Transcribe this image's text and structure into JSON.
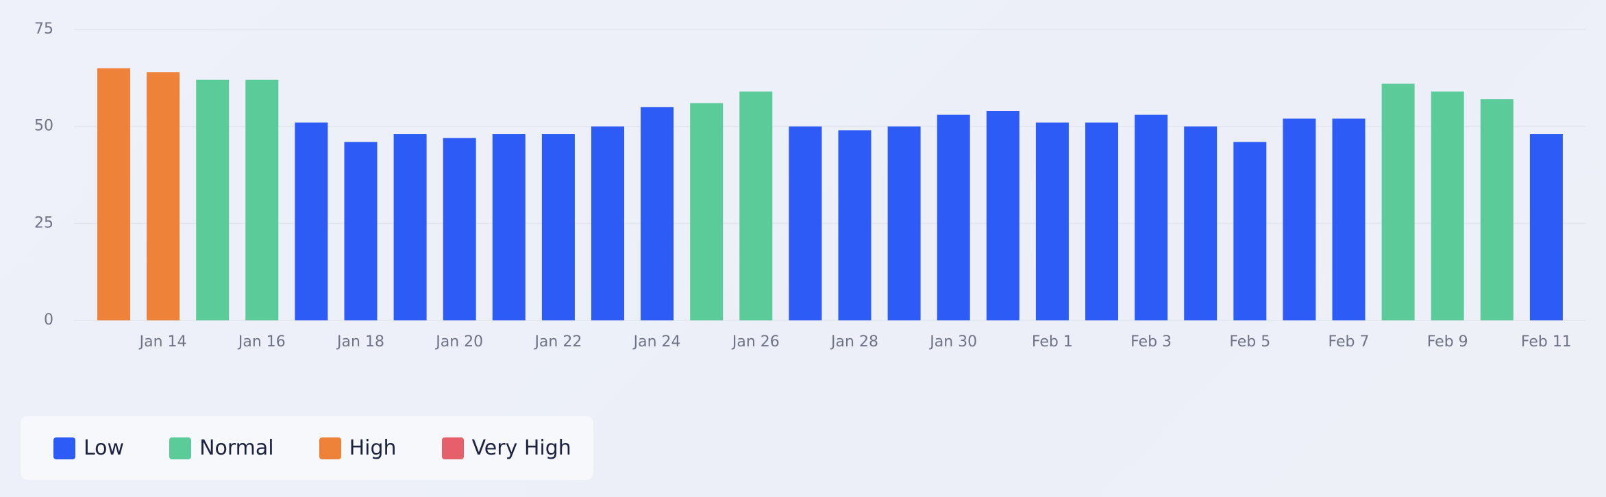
{
  "chart_data": {
    "type": "bar",
    "categories": [
      null,
      "Jan 14",
      null,
      "Jan 16",
      null,
      "Jan 18",
      null,
      "Jan 20",
      null,
      "Jan 22",
      null,
      "Jan 24",
      null,
      "Jan 26",
      null,
      "Jan 28",
      null,
      "Jan 30",
      null,
      "Feb 1",
      null,
      "Feb 3",
      null,
      "Feb 5",
      null,
      "Feb 7",
      null,
      "Feb 9",
      null,
      "Feb 11"
    ],
    "series": [
      {
        "name": "Low",
        "color": "#2d5bf5",
        "values": [
          null,
          null,
          null,
          null,
          51,
          46,
          48,
          47,
          48,
          48,
          50,
          55,
          null,
          null,
          50,
          49,
          50,
          53,
          54,
          51,
          51,
          53,
          50,
          46,
          52,
          52,
          null,
          null,
          null,
          48
        ]
      },
      {
        "name": "Normal",
        "color": "#5bcb9a",
        "values": [
          null,
          null,
          62,
          62,
          null,
          null,
          null,
          null,
          null,
          null,
          null,
          null,
          56,
          59,
          null,
          null,
          null,
          null,
          null,
          null,
          null,
          null,
          null,
          null,
          null,
          null,
          61,
          59,
          57,
          null
        ]
      },
      {
        "name": "High",
        "color": "#ef8239",
        "values": [
          65,
          64,
          null,
          null,
          null,
          null,
          null,
          null,
          null,
          null,
          null,
          null,
          null,
          null,
          null,
          null,
          null,
          null,
          null,
          null,
          null,
          null,
          null,
          null,
          null,
          null,
          null,
          null,
          null,
          null
        ]
      },
      {
        "name": "Very High",
        "color": "#e5606a",
        "values": [
          null,
          null,
          null,
          null,
          null,
          null,
          null,
          null,
          null,
          null,
          null,
          null,
          null,
          null,
          null,
          null,
          null,
          null,
          null,
          null,
          null,
          null,
          null,
          null,
          null,
          null,
          null,
          null,
          null,
          null
        ]
      }
    ],
    "ylim": [
      0,
      75
    ],
    "yticks": [
      0,
      25,
      50,
      75
    ],
    "grid": true
  }
}
